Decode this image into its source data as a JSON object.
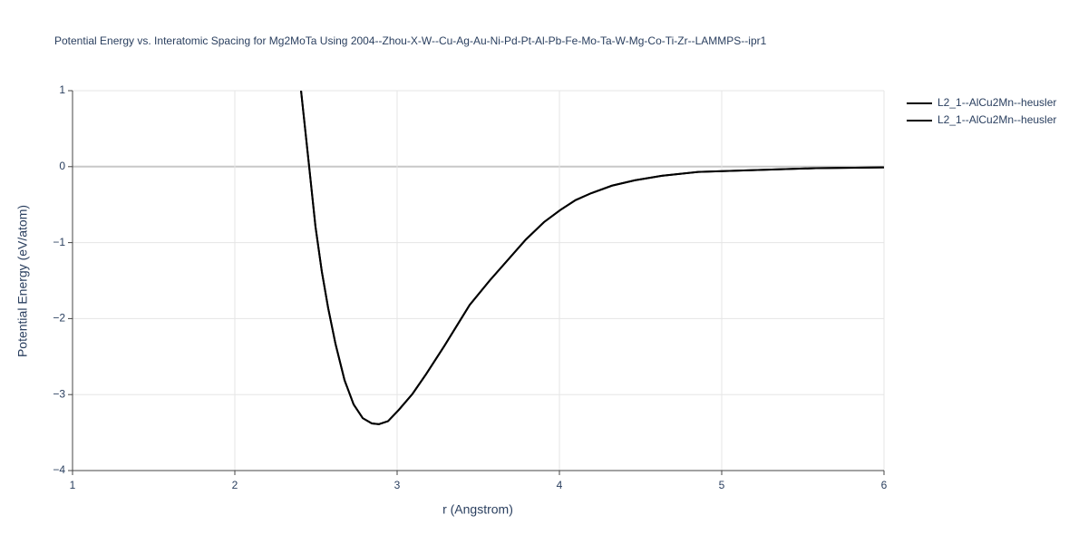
{
  "chart_data": {
    "type": "line",
    "title": "Potential Energy vs. Interatomic Spacing for Mg2MoTa Using 2004--Zhou-X-W--Cu-Ag-Au-Ni-Pd-Pt-Al-Pb-Fe-Mo-Ta-W-Mg-Co-Ti-Zr--LAMMPS--ipr1",
    "x_label": "r (Angstrom)",
    "y_label": "Potential Energy (eV/atom)",
    "x": [
      2.408,
      2.458,
      2.497,
      2.536,
      2.575,
      2.62,
      2.676,
      2.732,
      2.788,
      2.844,
      2.888,
      2.944,
      3.011,
      3.095,
      3.179,
      3.291,
      3.447,
      3.57,
      3.793,
      3.905,
      4.006,
      4.1,
      4.195,
      4.324,
      4.464,
      4.631,
      4.855,
      5.134,
      5.58,
      6.0
    ],
    "series": [
      {
        "name": "L2_1--AlCu2Mn--heusler",
        "color": "#000000",
        "values": [
          1.0,
          0.0,
          -0.79,
          -1.38,
          -1.86,
          -2.33,
          -2.81,
          -3.13,
          -3.31,
          -3.38,
          -3.39,
          -3.35,
          -3.2,
          -2.99,
          -2.73,
          -2.36,
          -1.82,
          -1.5,
          -0.96,
          -0.73,
          -0.57,
          -0.44,
          -0.35,
          -0.25,
          -0.18,
          -0.12,
          -0.07,
          -0.05,
          -0.02,
          -0.01
        ]
      },
      {
        "name": "L2_1--AlCu2Mn--heusler",
        "color": "#000000",
        "values": [
          1.0,
          0.0,
          -0.79,
          -1.38,
          -1.86,
          -2.33,
          -2.81,
          -3.13,
          -3.31,
          -3.38,
          -3.39,
          -3.35,
          -3.2,
          -2.99,
          -2.73,
          -2.36,
          -1.82,
          -1.5,
          -0.96,
          -0.73,
          -0.57,
          -0.44,
          -0.35,
          -0.25,
          -0.18,
          -0.12,
          -0.07,
          -0.05,
          -0.02,
          -0.01
        ]
      }
    ],
    "xlim": [
      1,
      6
    ],
    "ylim": [
      -4,
      1
    ],
    "xticks": [
      1,
      2,
      3,
      4,
      5,
      6
    ],
    "yticks": [
      {
        "value": -4,
        "label": "−4"
      },
      {
        "value": -3,
        "label": "−3"
      },
      {
        "value": -2,
        "label": "−2"
      },
      {
        "value": -1,
        "label": "−1"
      },
      0,
      1
    ],
    "grid": true,
    "legend": "outside-right"
  }
}
